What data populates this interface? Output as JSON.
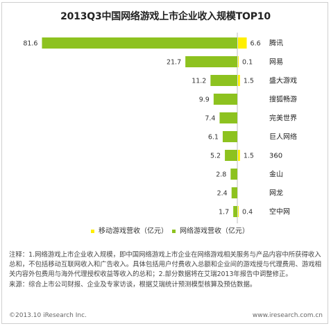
{
  "chart_data": {
    "type": "bar",
    "title": "2013Q3中国网络游戏上市企业收入规模TOP10",
    "categories": [
      "腾讯",
      "网易",
      "盛大游戏",
      "搜狐畅游",
      "完美世界",
      "巨人网络",
      "360",
      "金山",
      "网龙",
      "空中网"
    ],
    "series": [
      {
        "name": "网络游戏营收（亿元）",
        "color": "#8dc21f",
        "values": [
          81.6,
          21.7,
          11.2,
          9.9,
          7.4,
          6.1,
          5.2,
          2.8,
          2.4,
          1.7
        ]
      },
      {
        "name": "移动游戏营收（亿元）",
        "color": "#ffef00",
        "values": [
          6.6,
          0.1,
          1.5,
          null,
          null,
          null,
          1.5,
          null,
          null,
          0.4
        ]
      }
    ],
    "orientation": "horizontal",
    "legend_position": "bottom",
    "grid": false
  },
  "note": "注释：1.网络游戏上市企业收入规模，即中国网络游戏上市企业在网络游戏相关服务与产品内容中所获得收入总和，不包括移动互联网收入和广告收入。具体包括用户付费收入总额和企业间的游戏授与代理费用、游戏相关内容外包费用与海外代理授权收益等收入的总和；2.部分数据将在艾瑞2013年报告中调整修正。\n来源：综合上市公司财报、企业及专家访谈，根据艾瑞统计预测模型核算及预估数据。",
  "footer": {
    "copyright": "©2013.10 iResearch Inc.",
    "website": "www.iresearch.com.cn"
  }
}
